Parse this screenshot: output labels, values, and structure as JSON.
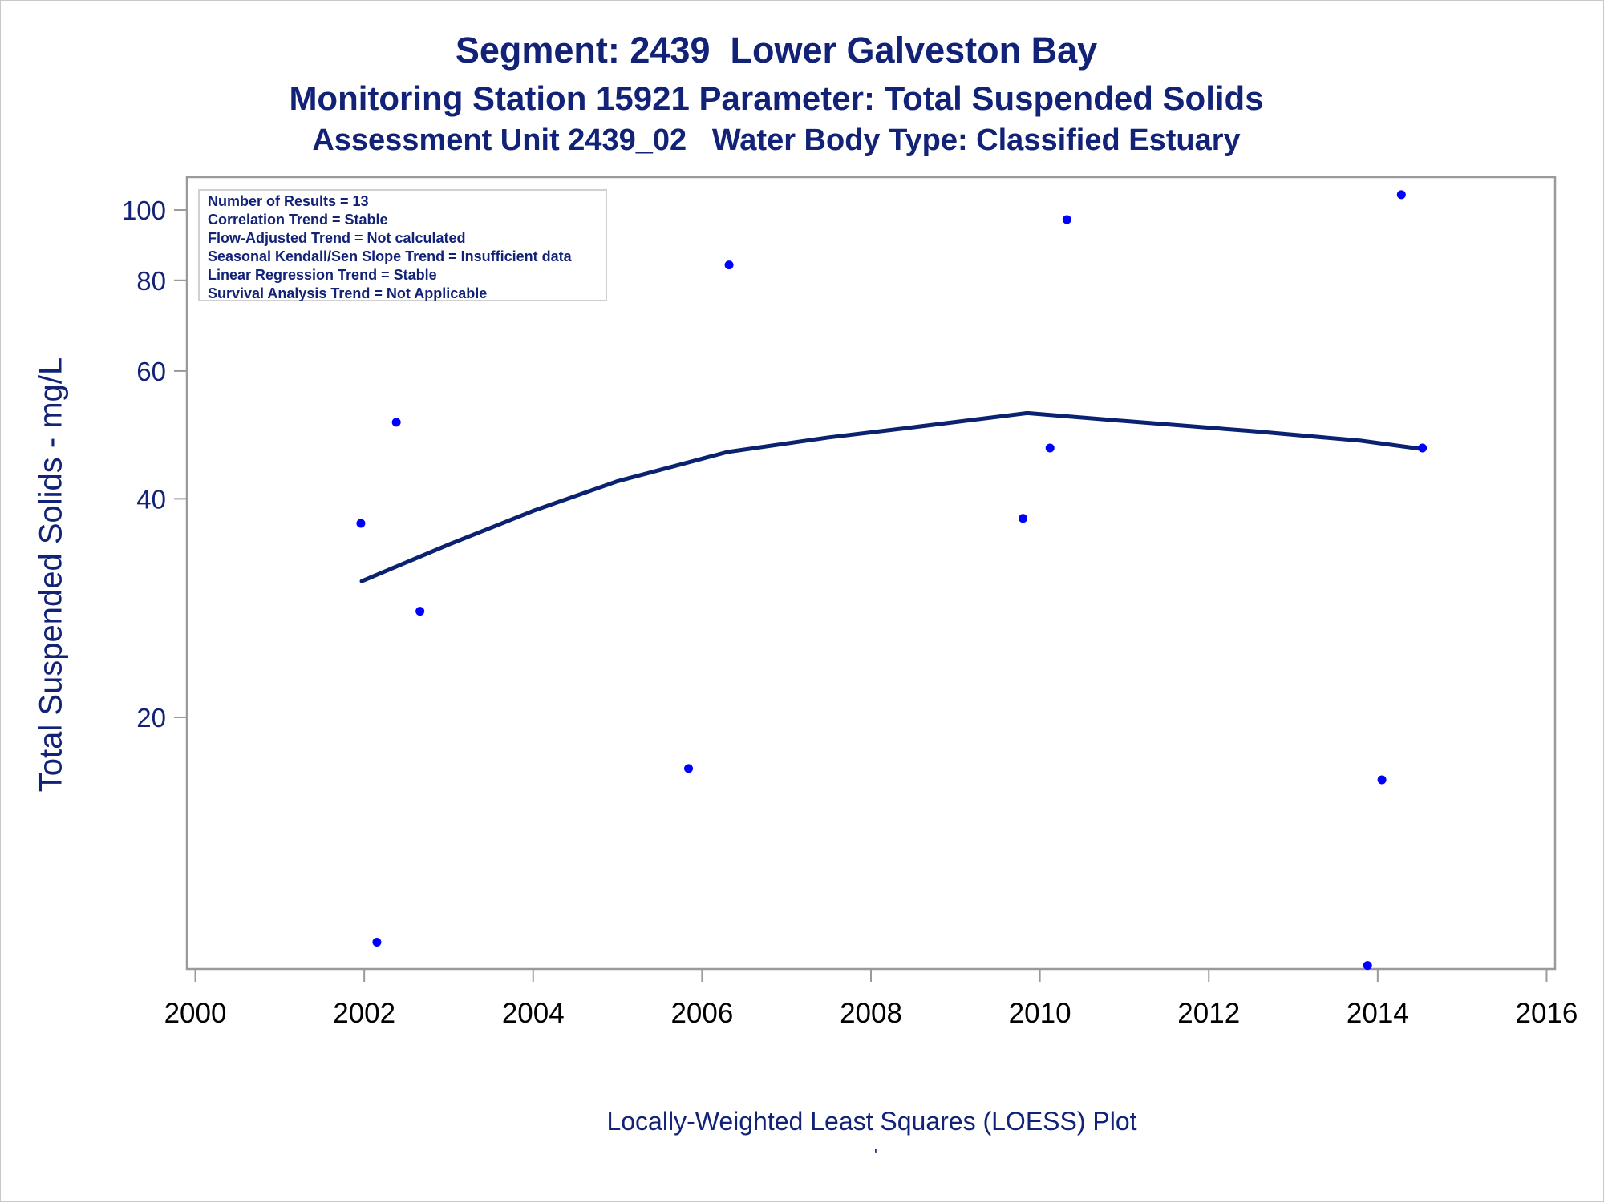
{
  "titles": {
    "line1": "Segment: 2439  Lower Galveston Bay",
    "line2": "Monitoring Station 15921 Parameter: Total Suspended Solids",
    "line3": "Assessment Unit 2439_02   Water Body Type: Classified Estuary"
  },
  "stats": [
    "Number of Results = 13",
    "Correlation Trend = Stable",
    "Flow-Adjusted Trend = Not calculated",
    "Seasonal Kendall/Sen Slope Trend = Insufficient data",
    "Linear Regression Trend = Stable",
    "Survival Analysis Trend = Not Applicable"
  ],
  "footnote": "Locally-Weighted Least Squares (LOESS) Plot",
  "footnote_mark": "'",
  "colors": {
    "text": "#112277",
    "points": "#0000ff",
    "loess": "#0a2270",
    "axis": "#9a9a9a"
  },
  "chart_data": {
    "type": "scatter",
    "title": "Segment: 2439  Lower Galveston Bay",
    "ylabel": "Total Suspended Solids - mg/L",
    "xlabel": "",
    "y_scale": "log",
    "xlim": [
      1999.9,
      2016.1
    ],
    "ylim": [
      9.0,
      111
    ],
    "x_ticks": [
      2000,
      2002,
      2004,
      2006,
      2008,
      2010,
      2012,
      2014,
      2016
    ],
    "x_tick_labels": [
      "2000",
      "2002",
      "2004",
      "2006",
      "2008",
      "2010",
      "2012",
      "2014",
      "2016"
    ],
    "y_ticks": [
      20,
      40,
      60,
      80,
      100
    ],
    "y_tick_labels": [
      "20",
      "40",
      "60",
      "80",
      "100"
    ],
    "grid": false,
    "series": [
      {
        "type": "scatter",
        "x": [
          2001.96,
          2002.15,
          2002.38,
          2002.66,
          2005.84,
          2006.32,
          2009.8,
          2010.12,
          2010.32,
          2013.88,
          2014.05,
          2014.28,
          2014.53
        ],
        "y": [
          37,
          9.8,
          51,
          28,
          17,
          84,
          37.6,
          47,
          97,
          9.1,
          16.4,
          105,
          47
        ]
      },
      {
        "type": "line",
        "x": [
          2001.97,
          2003.0,
          2004.0,
          2005.0,
          2006.3,
          2007.5,
          2008.5,
          2009.5,
          2009.85,
          2011.0,
          2012.5,
          2013.8,
          2014.55
        ],
        "y": [
          30.8,
          34.6,
          38.5,
          42.3,
          46.4,
          48.6,
          50.2,
          51.9,
          52.5,
          51.2,
          49.6,
          48.1,
          46.8
        ]
      }
    ]
  }
}
